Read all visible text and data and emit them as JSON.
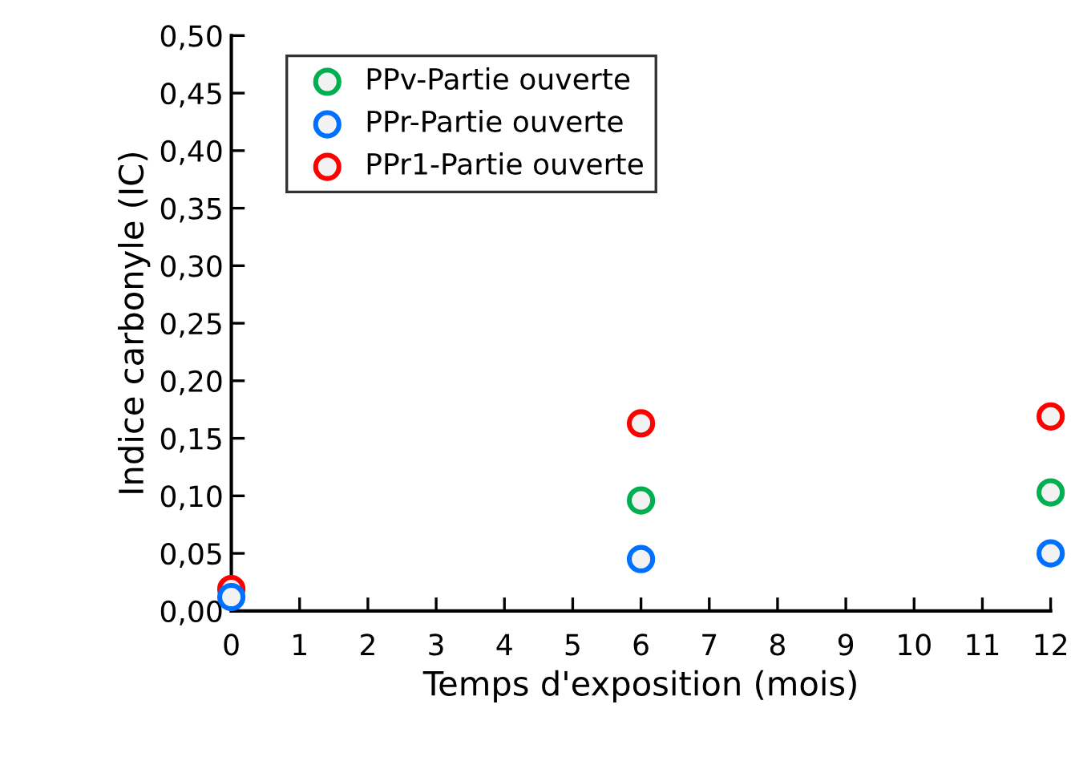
{
  "chart_data": {
    "type": "scatter",
    "xlabel": "Temps d'exposition (mois)",
    "ylabel": "Indice carbonyle (IC)",
    "x": [
      0,
      6,
      12
    ],
    "series": [
      {
        "name": "PPv-Partie ouverte",
        "color": "#00b050",
        "values": [
          null,
          0.096,
          0.103
        ]
      },
      {
        "name": "PPr-Partie ouverte",
        "color": "#0070ff",
        "values": [
          0.012,
          0.045,
          0.05
        ]
      },
      {
        "name": "PPr1-Partie ouverte",
        "color": "#ff0000",
        "values": [
          0.019,
          0.163,
          0.169
        ]
      }
    ],
    "xlim": [
      0,
      12
    ],
    "xticks": [
      0,
      1,
      2,
      3,
      4,
      5,
      6,
      7,
      8,
      9,
      10,
      11,
      12
    ],
    "ylim": [
      0,
      0.5
    ],
    "yticks": [
      {
        "value": 0,
        "label": "0,00"
      },
      {
        "value": 0.05,
        "label": "0,05"
      },
      {
        "value": 0.1,
        "label": "0,10"
      },
      {
        "value": 0.15,
        "label": "0,15"
      },
      {
        "value": 0.2,
        "label": "0,20"
      },
      {
        "value": 0.25,
        "label": "0,25"
      },
      {
        "value": 0.3,
        "label": "0,30"
      },
      {
        "value": 0.35,
        "label": "0,35"
      },
      {
        "value": 0.4,
        "label": "0,40"
      },
      {
        "value": 0.45,
        "label": "0,45"
      },
      {
        "value": 0.5,
        "label": "0,50"
      }
    ],
    "marker": "circle",
    "grid": false,
    "legend": "top left"
  }
}
